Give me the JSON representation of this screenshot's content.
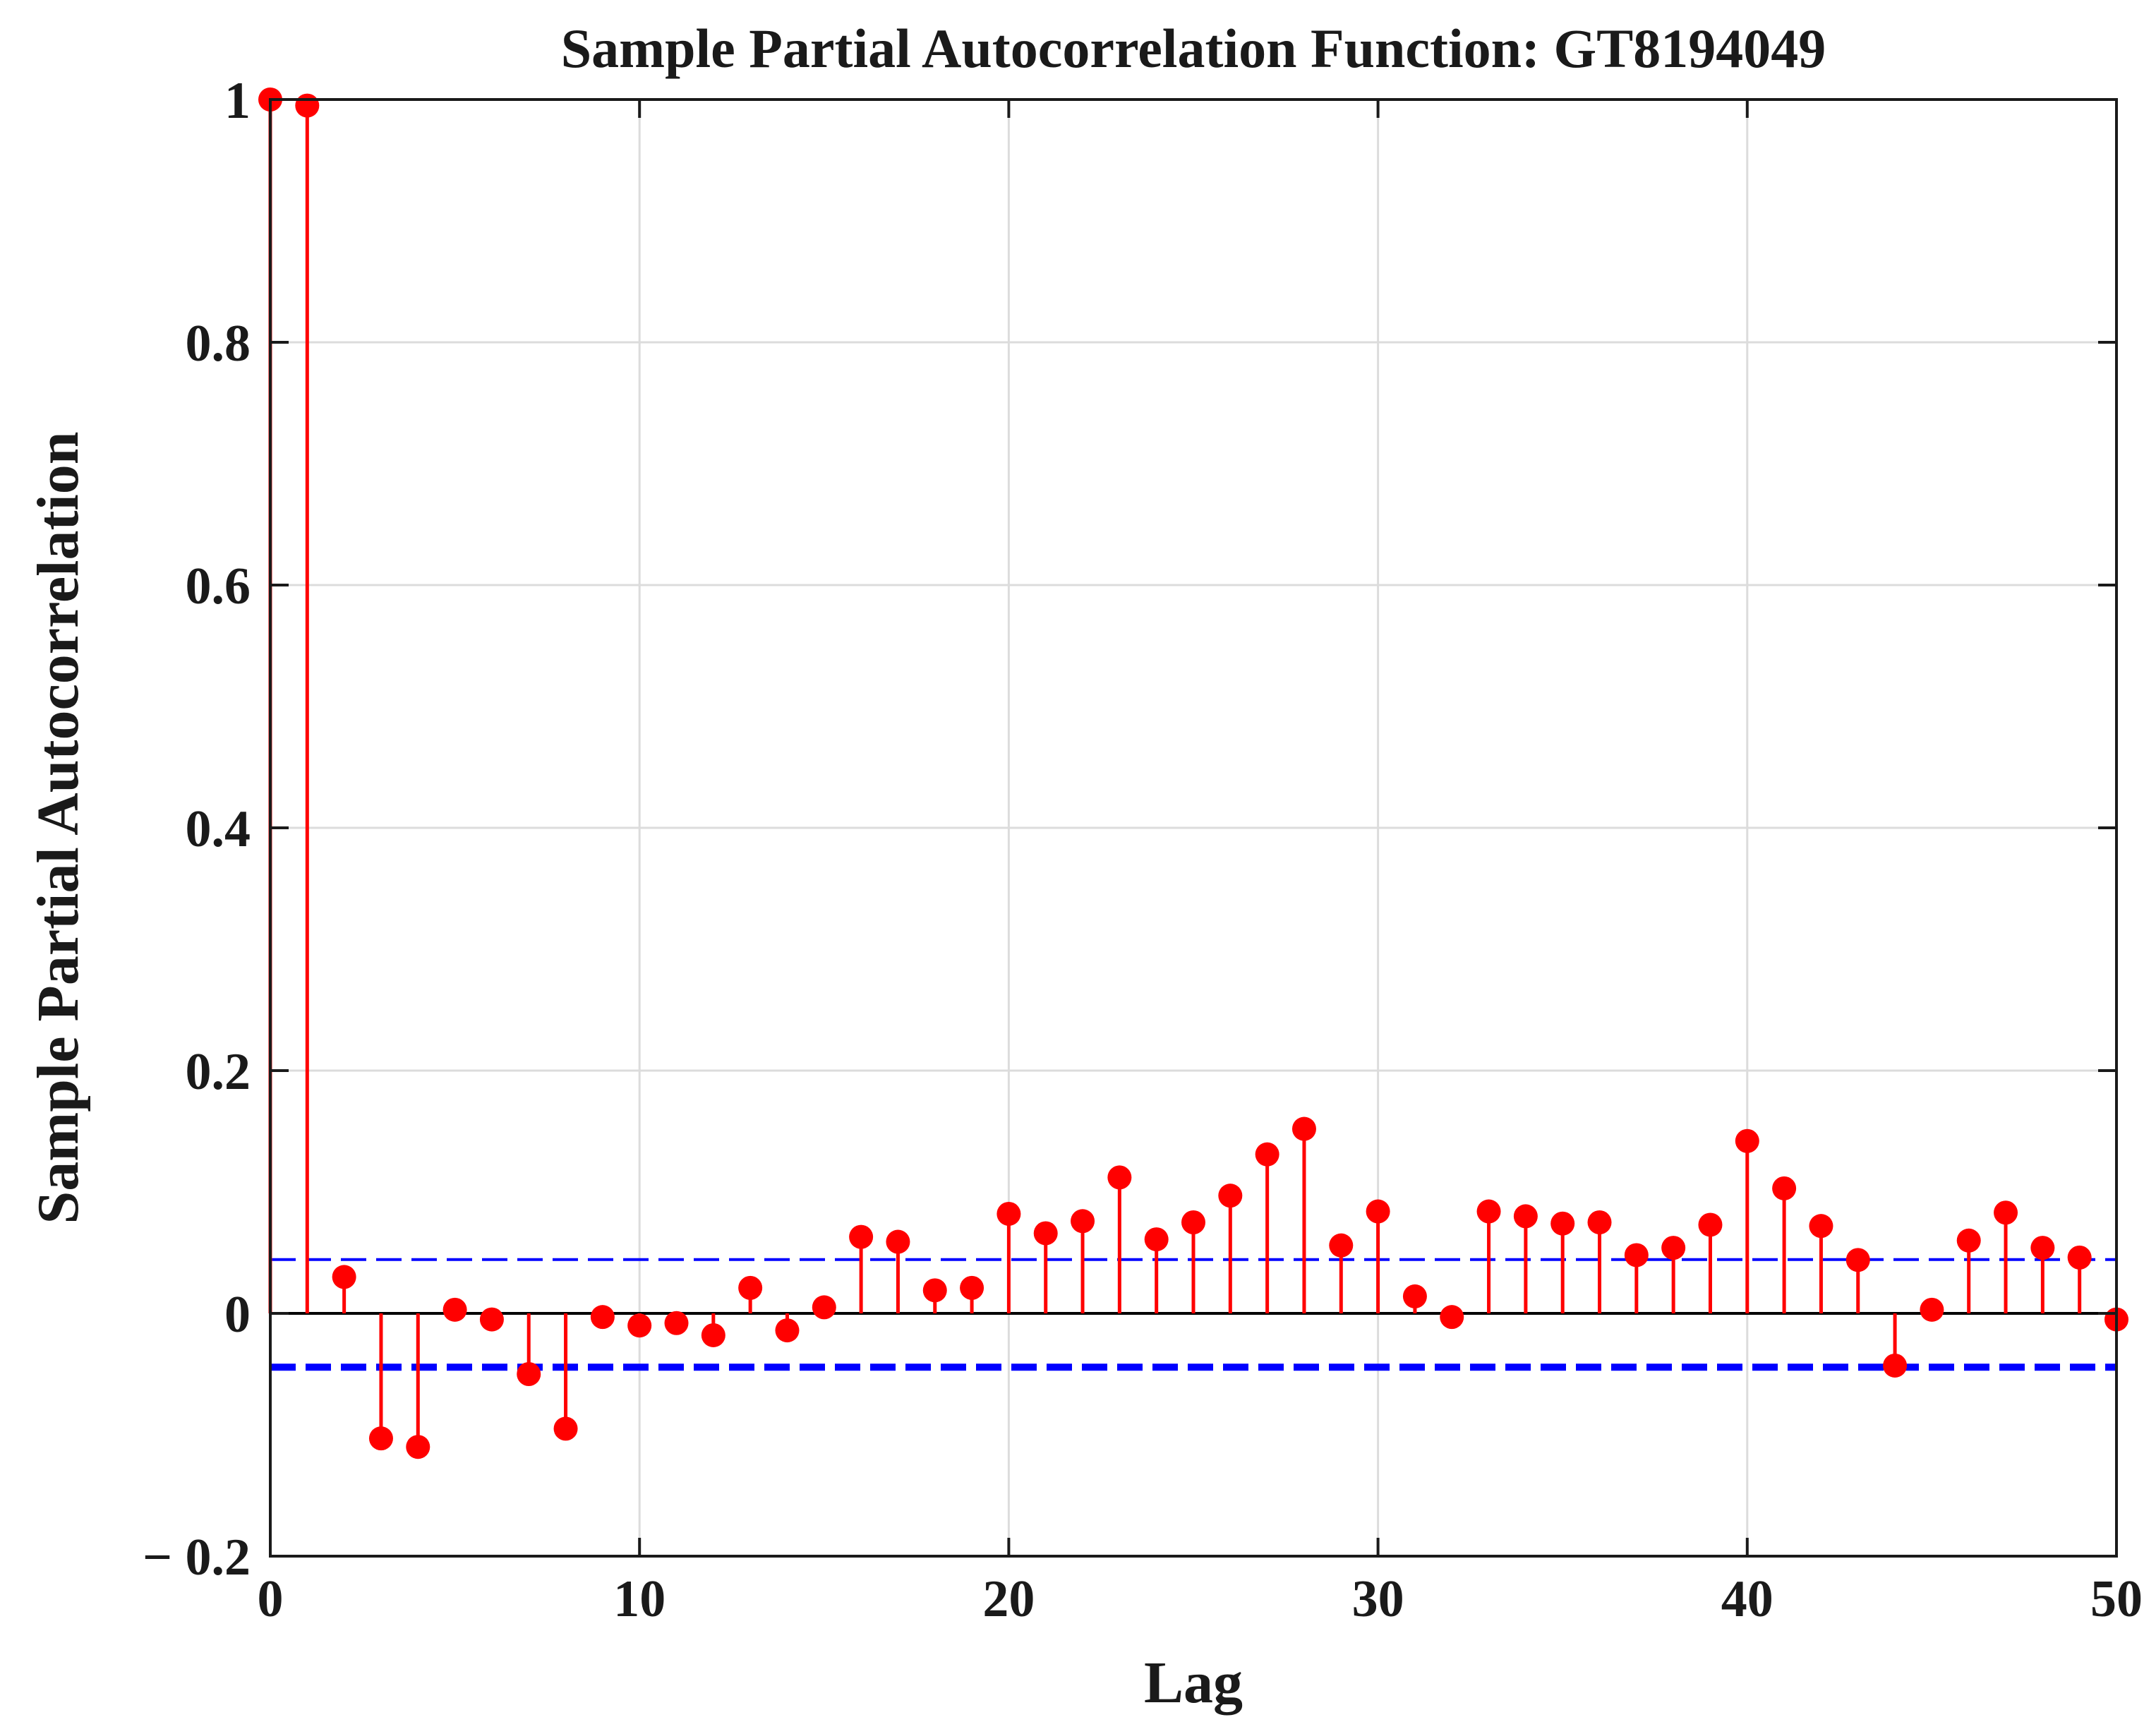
{
  "chart_data": {
    "type": "stem",
    "title": "Sample Partial Autocorrelation Function: GT8194049",
    "xlabel": "Lag",
    "ylabel": "Sample Partial Autocorrelation",
    "xlim": [
      0,
      50
    ],
    "ylim": [
      -0.2,
      1
    ],
    "xticks": [
      0,
      10,
      20,
      30,
      40,
      50
    ],
    "xtick_labels": [
      "0",
      "10",
      "20",
      "30",
      "40",
      "50"
    ],
    "yticks": [
      -0.2,
      0,
      0.2,
      0.4,
      0.6,
      0.8,
      1
    ],
    "ytick_labels": [
      "− 0.2",
      "0",
      "0.2",
      "0.4",
      "0.6",
      "0.8",
      "1"
    ],
    "grid": true,
    "lags": [
      0,
      1,
      2,
      3,
      4,
      5,
      6,
      7,
      8,
      9,
      10,
      11,
      12,
      13,
      14,
      15,
      16,
      17,
      18,
      19,
      20,
      21,
      22,
      23,
      24,
      25,
      26,
      27,
      28,
      29,
      30,
      31,
      32,
      33,
      34,
      35,
      36,
      37,
      38,
      39,
      40,
      41,
      42,
      43,
      44,
      45,
      46,
      47,
      48,
      49,
      50
    ],
    "values": [
      1.0,
      0.995,
      0.03,
      -0.103,
      -0.11,
      0.003,
      -0.005,
      -0.05,
      -0.095,
      -0.003,
      -0.01,
      -0.008,
      -0.018,
      0.021,
      -0.014,
      0.005,
      0.063,
      0.059,
      0.019,
      0.021,
      0.082,
      0.066,
      0.076,
      0.112,
      0.061,
      0.075,
      0.097,
      0.131,
      0.152,
      0.056,
      0.084,
      0.014,
      -0.003,
      0.084,
      0.08,
      0.074,
      0.075,
      0.048,
      0.054,
      0.073,
      0.142,
      0.103,
      0.072,
      0.044,
      -0.043,
      0.003,
      0.06,
      0.083,
      0.054,
      0.046,
      -0.005
    ],
    "confidence_bounds": {
      "upper": 0.0443,
      "lower": -0.0443
    },
    "colors": {
      "stem": "#ff0000",
      "bounds": "#0000ff",
      "axis": "#1a1a1a",
      "grid": "#dcdcdc",
      "zero_line": "#000000"
    }
  }
}
